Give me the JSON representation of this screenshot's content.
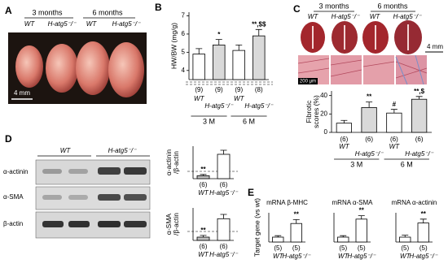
{
  "panel_labels": [
    "A",
    "B",
    "C",
    "D",
    "E"
  ],
  "panel_a": {
    "headers": [
      "3 months",
      "6 months"
    ],
    "labels": [
      "WT",
      "H-atg5⁻/⁻",
      "WT",
      "H-atg5⁻/⁻"
    ],
    "scale": "4 mm"
  },
  "panel_c": {
    "headers": [
      "3 months",
      "6 months"
    ],
    "labels": [
      "WT",
      "H-atg5⁻/⁻",
      "WT",
      "H-atg5⁻/⁻"
    ],
    "scale_heart": "4 mm",
    "scale_histology": "200 μm"
  },
  "panel_d": {
    "headers": [
      "WT",
      "H-atg5⁻/⁻"
    ],
    "rows": [
      "α-actinin",
      "α-SMA",
      "β-actin"
    ]
  },
  "chart_data": [
    {
      "type": "bar",
      "ylabel": [
        "HW/BW (mg/g)"
      ],
      "categories": [
        "WT",
        "H-atg5⁻/⁻",
        "WT",
        "H-atg5⁻/⁻"
      ],
      "groups": [
        "3 M",
        "6 M"
      ],
      "values": [
        4.9,
        5.4,
        5.1,
        5.9
      ],
      "errors": [
        0.3,
        0.3,
        0.3,
        0.35
      ],
      "colors": [
        "#ffffff",
        "#d9d9d9",
        "#ffffff",
        "#d9d9d9"
      ],
      "n_labels": [
        "(9)",
        "(9)",
        "(9)",
        "(8)"
      ],
      "annotations": [
        null,
        "*",
        null,
        "**,$$"
      ],
      "ylim": [
        3.5,
        7.2
      ],
      "yticks": [
        4,
        5,
        6,
        7
      ]
    },
    {
      "type": "bar",
      "ylabel": [
        "Fibrotic",
        "scores (%)"
      ],
      "categories": [
        "WT",
        "H-atg5⁻/⁻",
        "WT",
        "H-atg5⁻/⁻"
      ],
      "groups": [
        "3 M",
        "6 M"
      ],
      "values": [
        10,
        27,
        21,
        36
      ],
      "errors": [
        3,
        6,
        4,
        3
      ],
      "colors": [
        "#ffffff",
        "#d9d9d9",
        "#ffffff",
        "#d9d9d9"
      ],
      "n_labels": [
        "(6)",
        "(6)",
        "(6)",
        "(6)"
      ],
      "annotations": [
        null,
        "**",
        "#",
        "**,$"
      ],
      "ylim": [
        0,
        45
      ],
      "yticks": [
        0,
        20,
        40
      ]
    },
    {
      "type": "bar",
      "ylabel": [
        "α-actinin",
        "/β-actin"
      ],
      "categories": [
        "WT",
        "H-atg5⁻/⁻"
      ],
      "values": [
        18,
        150
      ],
      "errors": [
        8,
        25
      ],
      "colors": [
        "#bfbfbf",
        "#ffffff"
      ],
      "n_labels": [
        "(6)",
        "(6)"
      ],
      "annotations": [
        "**",
        null
      ],
      "ylim": [
        0,
        200
      ]
    },
    {
      "type": "bar",
      "ylabel": [
        "α-SMA",
        "/β-actin"
      ],
      "categories": [
        "WT",
        "H-atg5⁻/⁻"
      ],
      "values": [
        15,
        100
      ],
      "errors": [
        8,
        20
      ],
      "colors": [
        "#bfbfbf",
        "#ffffff"
      ],
      "n_labels": [
        "(6)",
        "(6)"
      ],
      "annotations": [
        "**",
        null
      ],
      "ylim": [
        0,
        150
      ]
    },
    {
      "type": "bar",
      "title": "mRNA β-MHC",
      "ylabel": [
        "Target gene (vs wt)"
      ],
      "categories": [
        "WT",
        "H-atg5⁻/⁻"
      ],
      "values": [
        1,
        3.8
      ],
      "errors": [
        0.3,
        0.8
      ],
      "colors": [
        "#ffffff",
        "#ffffff"
      ],
      "n_labels": [
        "(5)",
        "(5)"
      ],
      "annotations": [
        null,
        "**"
      ],
      "ylim": [
        0,
        6
      ]
    },
    {
      "type": "bar",
      "title": "mRNA α-SMA",
      "categories": [
        "WT",
        "H-atg5⁻/⁻"
      ],
      "values": [
        1,
        4.7
      ],
      "errors": [
        0.3,
        0.7
      ],
      "colors": [
        "#ffffff",
        "#ffffff"
      ],
      "n_labels": [
        "(5)",
        "(5)"
      ],
      "annotations": [
        null,
        "**"
      ],
      "ylim": [
        0,
        6
      ]
    },
    {
      "type": "bar",
      "title": "mRNA α-actinin",
      "categories": [
        "WT",
        "H-atg5⁻/⁻"
      ],
      "values": [
        1,
        3.9
      ],
      "errors": [
        0.4,
        0.8
      ],
      "colors": [
        "#ffffff",
        "#ffffff"
      ],
      "n_labels": [
        "(5)",
        "(5)"
      ],
      "annotations": [
        null,
        "**"
      ],
      "ylim": [
        0,
        6
      ]
    }
  ]
}
